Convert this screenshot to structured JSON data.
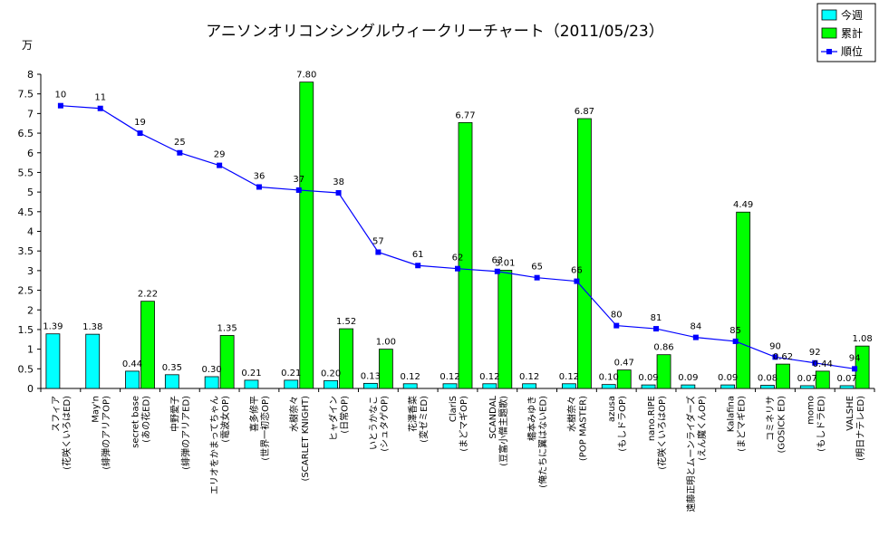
{
  "chart_data": {
    "type": "bar",
    "title": "アニソンオリコンシングルウィークリーチャート（2011/05/23）",
    "yunit": "万",
    "ylim": [
      0,
      8
    ],
    "yticks": [
      "0",
      "0.5",
      "1",
      "1.5",
      "2",
      "2.5",
      "3",
      "3.5",
      "4",
      "4.5",
      "5",
      "5.5",
      "6",
      "6.5",
      "7",
      "7.5",
      "8"
    ],
    "grid": false,
    "legend_position": "top-right",
    "categories": [
      [
        "スフィア",
        "(花咲くいろはED)"
      ],
      [
        "May'n",
        "(緋弾のアリアOP)"
      ],
      [
        "secret base",
        "(あの花ED)"
      ],
      [
        "中野愛子",
        "(緋弾のアリアED)"
      ],
      [
        "エリオをかまってちゃん",
        "(電波女OP)"
      ],
      [
        "喜多修平",
        "(世界一初恋OP)"
      ],
      [
        "水樹奈々",
        "(SCARLET KNIGHT)"
      ],
      [
        "ヒャダイン",
        "(日常OP)"
      ],
      [
        "いとうかなこ",
        "(シュタゲOP)"
      ],
      [
        "花澤香菜",
        "(変ゼミED)"
      ],
      [
        "ClariS",
        "(まどマギOP)"
      ],
      [
        "SCANDAL",
        "(豆富小僧主題歌)"
      ],
      [
        "橋本みゆき",
        "(俺たちに翼はないED)"
      ],
      [
        "水樹奈々",
        "(POP MASTER)"
      ],
      [
        "azusa",
        "(もしドラOP)"
      ],
      [
        "nano.RIPE",
        "(花咲くいろはOP)"
      ],
      [
        "遠藤正明とムーンライダーズ",
        "(えん魔くんOP)"
      ],
      [
        "Kalafina",
        "(まどマギED)"
      ],
      [
        "コミネリサ",
        "(GOSICK ED)"
      ],
      [
        "momo",
        "(もしドラED)"
      ],
      [
        "VALSHE",
        "(明日ナテレED)"
      ]
    ],
    "series": [
      {
        "name": "今週",
        "color": "#00ffff",
        "values": [
          1.39,
          1.38,
          0.44,
          0.35,
          0.3,
          0.21,
          0.21,
          0.2,
          0.13,
          0.12,
          0.12,
          0.12,
          0.12,
          0.12,
          0.1,
          0.09,
          0.09,
          0.09,
          0.08,
          0.07,
          0.07
        ],
        "labels": [
          "1.39",
          "1.38",
          "0.44",
          "0.35",
          "0.30",
          "0.21",
          "0.21",
          "0.20",
          "0.13",
          "0.12",
          "0.12",
          "0.12",
          "0.12",
          "0.12",
          "0.10",
          "0.09",
          "0.09",
          "0.09",
          "0.08",
          "0.07",
          "0.07"
        ]
      },
      {
        "name": "累計",
        "color": "#00ff00",
        "values": [
          null,
          null,
          2.22,
          null,
          1.35,
          null,
          7.8,
          1.52,
          1.0,
          null,
          6.77,
          3.01,
          null,
          6.87,
          0.47,
          0.86,
          null,
          4.49,
          0.62,
          0.44,
          1.08
        ],
        "labels": [
          "",
          "",
          "2.22",
          "",
          "1.35",
          "",
          "7.80",
          "1.52",
          "1.00",
          "",
          "6.77",
          "3.01",
          "",
          "6.87",
          "0.47",
          "0.86",
          "",
          "4.49",
          "0.62",
          "0.44",
          "1.08"
        ]
      },
      {
        "name": "順位",
        "type": "line",
        "color": "#0000ff",
        "values": [
          10,
          11,
          19,
          25,
          29,
          36,
          37,
          38,
          57,
          61,
          62,
          63,
          65,
          66,
          80,
          81,
          84,
          85,
          90,
          92,
          94
        ],
        "plot_y": [
          7.2,
          7.13,
          6.5,
          6.0,
          5.68,
          5.13,
          5.05,
          4.98,
          3.47,
          3.13,
          3.05,
          2.98,
          2.82,
          2.73,
          1.6,
          1.52,
          1.3,
          1.2,
          0.8,
          0.65,
          0.5
        ],
        "labels": [
          "10",
          "11",
          "19",
          "25",
          "29",
          "36",
          "37",
          "38",
          "57",
          "61",
          "62",
          "63",
          "65",
          "66",
          "80",
          "81",
          "84",
          "85",
          "90",
          "92",
          "94"
        ]
      }
    ]
  }
}
